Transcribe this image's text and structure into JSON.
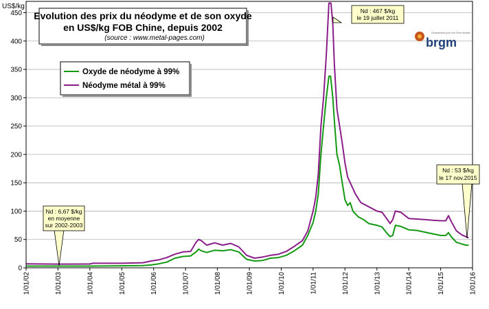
{
  "chart_data": {
    "type": "line",
    "title_line1": "Evolution des prix du néodyme et de son oxyde",
    "title_line2": "en US$/kg FOB Chine, depuis 2002",
    "source": "(source : www.metal-pages.com)",
    "ylabel": "US$/kg",
    "xlabel": "",
    "ylim": [
      0,
      470
    ],
    "yticks": [
      0,
      50,
      100,
      150,
      200,
      250,
      300,
      350,
      400,
      450
    ],
    "xlim": [
      "2002-01-01",
      "2016-01-01"
    ],
    "xticks": [
      "1/01/02",
      "1/01/03",
      "1/01/04",
      "1/01/05",
      "1/01/06",
      "1/01/07",
      "1/01/08",
      "1/01/09",
      "1/01/10",
      "1/01/11",
      "1/01/12",
      "1/01/13",
      "1/01/14",
      "1/01/15",
      "1/01/16"
    ],
    "grid": true,
    "legend_position": "top-left",
    "series": [
      {
        "name": "Oxyde de néodyme à 99%",
        "color": "#119911",
        "points": [
          [
            "2002-01-01",
            3
          ],
          [
            "2003-01-01",
            3
          ],
          [
            "2004-01-01",
            3
          ],
          [
            "2005-01-01",
            3.5
          ],
          [
            "2005-09-01",
            4
          ],
          [
            "2005-12-01",
            5
          ],
          [
            "2006-03-01",
            7
          ],
          [
            "2006-06-01",
            10
          ],
          [
            "2006-09-01",
            17
          ],
          [
            "2006-12-01",
            20
          ],
          [
            "2007-03-01",
            21
          ],
          [
            "2007-05-01",
            28
          ],
          [
            "2007-06-01",
            33
          ],
          [
            "2007-07-01",
            30
          ],
          [
            "2007-09-01",
            27
          ],
          [
            "2007-12-01",
            31
          ],
          [
            "2008-03-01",
            30
          ],
          [
            "2008-06-01",
            32
          ],
          [
            "2008-09-01",
            28
          ],
          [
            "2008-12-01",
            15
          ],
          [
            "2009-03-01",
            12
          ],
          [
            "2009-06-01",
            13
          ],
          [
            "2009-09-01",
            17
          ],
          [
            "2009-12-01",
            18
          ],
          [
            "2010-03-01",
            22
          ],
          [
            "2010-06-01",
            30
          ],
          [
            "2010-09-01",
            40
          ],
          [
            "2010-11-01",
            57
          ],
          [
            "2011-01-01",
            80
          ],
          [
            "2011-02-01",
            100
          ],
          [
            "2011-03-01",
            130
          ],
          [
            "2011-04-01",
            200
          ],
          [
            "2011-05-01",
            250
          ],
          [
            "2011-06-01",
            300
          ],
          [
            "2011-07-01",
            338
          ],
          [
            "2011-07-20",
            338
          ],
          [
            "2011-08-15",
            300
          ],
          [
            "2011-09-01",
            260
          ],
          [
            "2011-10-01",
            200
          ],
          [
            "2011-11-01",
            180
          ],
          [
            "2011-12-01",
            150
          ],
          [
            "2012-01-01",
            120
          ],
          [
            "2012-02-01",
            110
          ],
          [
            "2012-03-01",
            115
          ],
          [
            "2012-04-01",
            100
          ],
          [
            "2012-05-01",
            95
          ],
          [
            "2012-06-01",
            90
          ],
          [
            "2012-08-01",
            85
          ],
          [
            "2012-10-01",
            78
          ],
          [
            "2013-01-01",
            75
          ],
          [
            "2013-03-01",
            72
          ],
          [
            "2013-05-01",
            60
          ],
          [
            "2013-06-01",
            55
          ],
          [
            "2013-07-01",
            57
          ],
          [
            "2013-08-01",
            75
          ],
          [
            "2013-10-01",
            73
          ],
          [
            "2014-01-01",
            67
          ],
          [
            "2014-04-01",
            66
          ],
          [
            "2014-07-01",
            63
          ],
          [
            "2014-10-01",
            60
          ],
          [
            "2015-01-01",
            57
          ],
          [
            "2015-03-01",
            57
          ],
          [
            "2015-04-01",
            62
          ],
          [
            "2015-05-01",
            55
          ],
          [
            "2015-07-01",
            45
          ],
          [
            "2015-09-01",
            42
          ],
          [
            "2015-10-15",
            40
          ],
          [
            "2015-11-17",
            40
          ]
        ]
      },
      {
        "name": "Néodyme métal à 99%",
        "color": "#8a1c8a",
        "points": [
          [
            "2002-01-01",
            7
          ],
          [
            "2003-01-01",
            6.5
          ],
          [
            "2004-01-01",
            6.7
          ],
          [
            "2004-02-01",
            8
          ],
          [
            "2005-01-01",
            8
          ],
          [
            "2005-09-01",
            9
          ],
          [
            "2005-12-01",
            12
          ],
          [
            "2006-03-01",
            14
          ],
          [
            "2006-06-01",
            18
          ],
          [
            "2006-09-01",
            24
          ],
          [
            "2006-12-01",
            28
          ],
          [
            "2007-03-01",
            29
          ],
          [
            "2007-05-01",
            45
          ],
          [
            "2007-06-01",
            50
          ],
          [
            "2007-07-01",
            48
          ],
          [
            "2007-09-01",
            40
          ],
          [
            "2007-12-01",
            44
          ],
          [
            "2008-03-01",
            40
          ],
          [
            "2008-06-01",
            43
          ],
          [
            "2008-09-01",
            37
          ],
          [
            "2008-12-01",
            22
          ],
          [
            "2009-03-01",
            17
          ],
          [
            "2009-06-01",
            19
          ],
          [
            "2009-09-01",
            22
          ],
          [
            "2009-12-01",
            24
          ],
          [
            "2010-03-01",
            29
          ],
          [
            "2010-06-01",
            38
          ],
          [
            "2010-09-01",
            48
          ],
          [
            "2010-11-01",
            65
          ],
          [
            "2011-01-01",
            100
          ],
          [
            "2011-02-01",
            125
          ],
          [
            "2011-03-01",
            165
          ],
          [
            "2011-04-01",
            250
          ],
          [
            "2011-05-01",
            300
          ],
          [
            "2011-06-01",
            375
          ],
          [
            "2011-07-01",
            467
          ],
          [
            "2011-07-25",
            467
          ],
          [
            "2011-08-15",
            430
          ],
          [
            "2011-09-01",
            360
          ],
          [
            "2011-10-01",
            280
          ],
          [
            "2011-11-01",
            250
          ],
          [
            "2011-12-01",
            220
          ],
          [
            "2012-01-01",
            185
          ],
          [
            "2012-02-01",
            160
          ],
          [
            "2012-03-01",
            150
          ],
          [
            "2012-04-01",
            140
          ],
          [
            "2012-05-01",
            130
          ],
          [
            "2012-07-01",
            115
          ],
          [
            "2012-09-01",
            110
          ],
          [
            "2013-01-01",
            100
          ],
          [
            "2013-03-01",
            98
          ],
          [
            "2013-05-01",
            85
          ],
          [
            "2013-06-01",
            78
          ],
          [
            "2013-07-01",
            85
          ],
          [
            "2013-08-01",
            100
          ],
          [
            "2013-10-01",
            98
          ],
          [
            "2014-01-01",
            87
          ],
          [
            "2014-04-01",
            86
          ],
          [
            "2014-07-01",
            85
          ],
          [
            "2014-10-01",
            84
          ],
          [
            "2015-01-01",
            83
          ],
          [
            "2015-03-01",
            83
          ],
          [
            "2015-04-01",
            92
          ],
          [
            "2015-05-01",
            82
          ],
          [
            "2015-07-01",
            65
          ],
          [
            "2015-09-01",
            58
          ],
          [
            "2015-10-15",
            55
          ],
          [
            "2015-11-17",
            53
          ]
        ]
      }
    ],
    "annotations": [
      {
        "lines": [
          "Nd : 6,67 $/kg",
          "en moyenne",
          "sur 2002-2003"
        ],
        "x": "2002-12-15",
        "y": 6.67
      },
      {
        "lines": [
          "Nd : 467 $/kg",
          "le 19 juillet 2011"
        ],
        "x": "2011-07-19",
        "y": 467
      },
      {
        "lines": [
          "Nd : 53 $/kg",
          "le 17 nov.2015"
        ],
        "x": "2015-11-17",
        "y": 53
      }
    ],
    "logo": {
      "text": "brgm",
      "tagline": "Géosciences pour une Terre durable"
    }
  }
}
